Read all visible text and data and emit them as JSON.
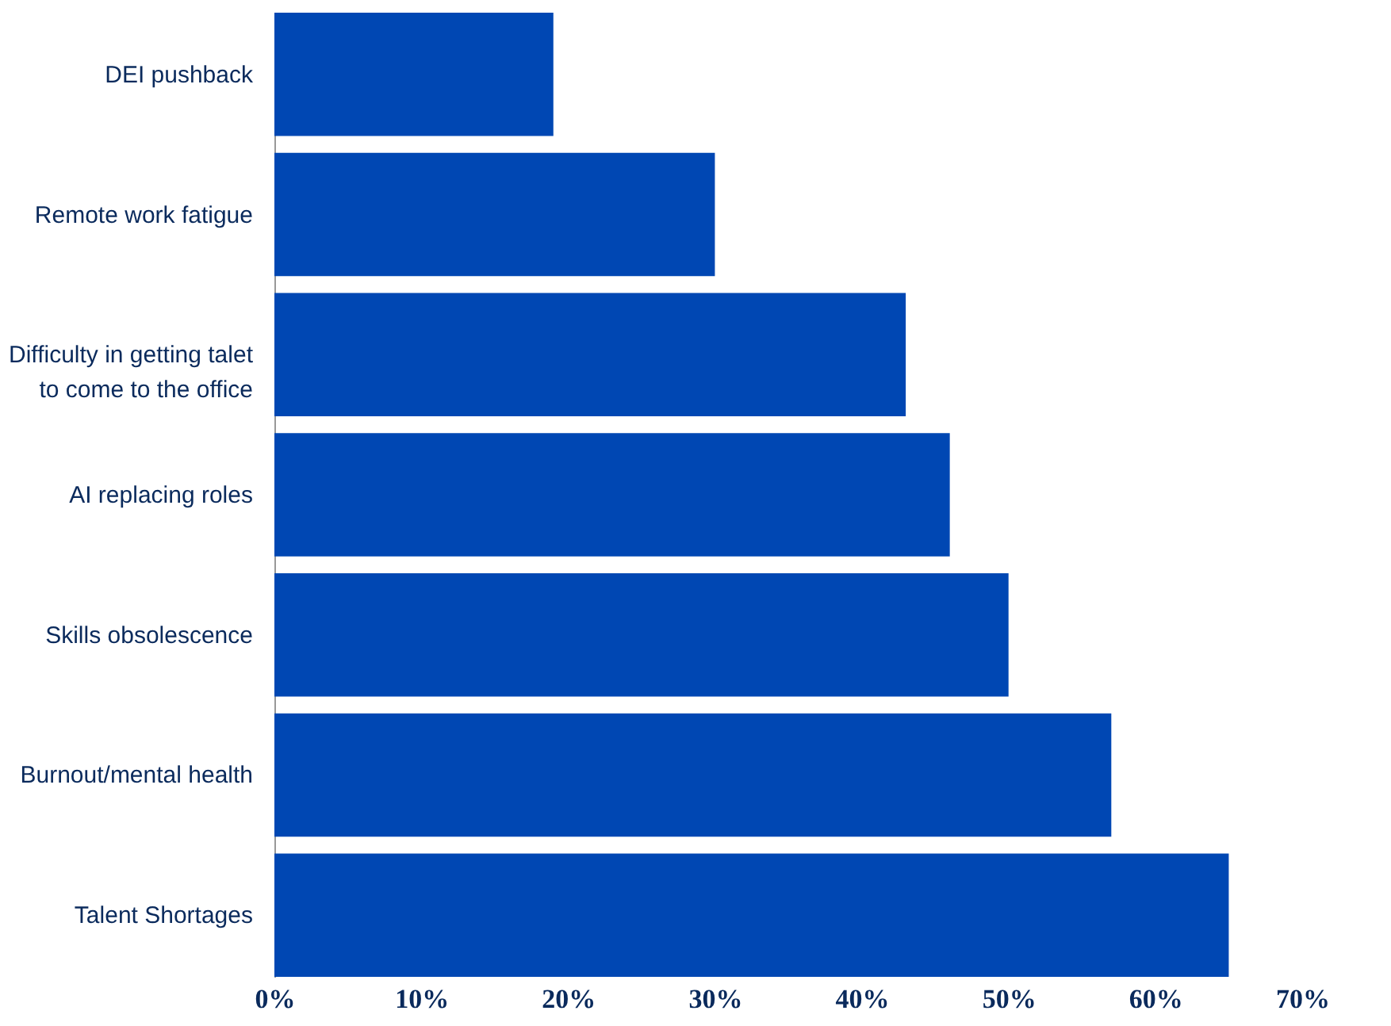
{
  "chart_data": {
    "type": "bar",
    "orientation": "horizontal",
    "categories": [
      "DEI pushback",
      "Remote work fatigue",
      "Difficulty in getting talet\nto come to the office",
      "AI replacing roles",
      "Skills obsolescence",
      "Burnout/mental health",
      "Talent Shortages"
    ],
    "values": [
      19,
      30,
      43,
      46,
      50,
      57,
      65
    ],
    "color": "#0047b3",
    "xlim": [
      0,
      70
    ],
    "xticks": [
      {
        "value": 0,
        "label": "0%"
      },
      {
        "value": 10,
        "label": "10%"
      },
      {
        "value": 20,
        "label": "20%"
      },
      {
        "value": 30,
        "label": "30%"
      },
      {
        "value": 40,
        "label": "40%"
      },
      {
        "value": 50,
        "label": "50%"
      },
      {
        "value": 60,
        "label": "60%"
      },
      {
        "value": 70,
        "label": "70%"
      }
    ],
    "grid": false
  }
}
